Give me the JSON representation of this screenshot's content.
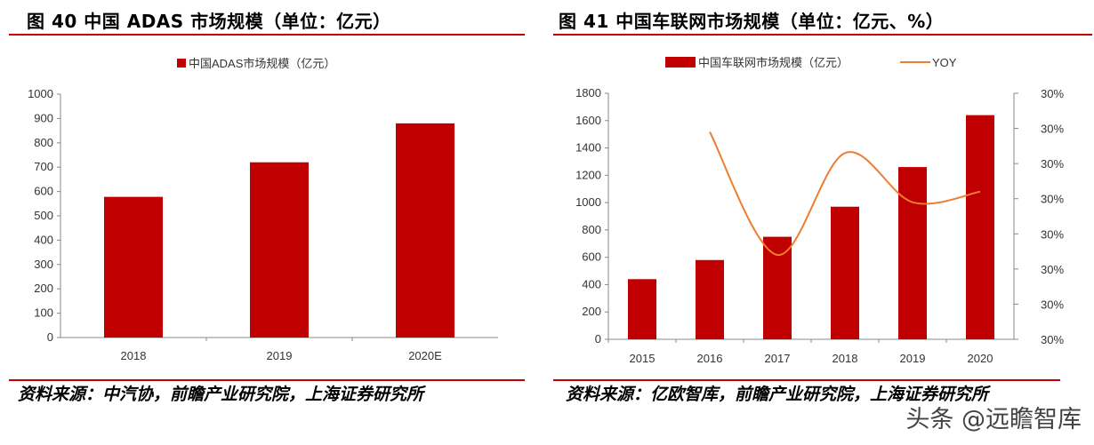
{
  "left": {
    "title": "图 40 中国 ADAS 市场规模（单位：亿元）",
    "source": "资料来源：中汽协，前瞻产业研究院，上海证券研究所"
  },
  "right": {
    "title": "图 41 中国车联网市场规模（单位：亿元、%）",
    "source": "资料来源：亿欧智库，前瞻产业研究院，上海证券研究所"
  },
  "watermark": "头条 @远瞻智库",
  "colors": {
    "bar": "#c00000",
    "line": "#ed7d31",
    "rule": "#c00000"
  },
  "chart_data": [
    {
      "type": "bar",
      "title": "",
      "legend": [
        "中国ADAS市场规模（亿元）"
      ],
      "legend_position": "top",
      "categories": [
        "2018",
        "2019",
        "2020E"
      ],
      "series": [
        {
          "name": "中国ADAS市场规模（亿元）",
          "values": [
            578,
            720,
            880
          ]
        }
      ],
      "ylim": [
        0,
        1000
      ],
      "yticks": [
        0,
        100,
        200,
        300,
        400,
        500,
        600,
        700,
        800,
        900,
        1000
      ],
      "grid": false
    },
    {
      "type": "bar",
      "title": "",
      "legend": [
        "中国车联网市场规模（亿元）",
        "YOY"
      ],
      "legend_position": "top",
      "categories": [
        "2015",
        "2016",
        "2017",
        "2018",
        "2019",
        "2020"
      ],
      "series": [
        {
          "name": "中国车联网市场规模（亿元）",
          "type": "bar",
          "axis": "left",
          "values": [
            440,
            580,
            750,
            970,
            1260,
            1640
          ]
        },
        {
          "name": "YOY",
          "type": "line",
          "axis": "right",
          "values": [
            null,
            30.24,
            29.89,
            30.18,
            30.04,
            30.07
          ]
        }
      ],
      "ylim": [
        0,
        1800
      ],
      "yticks": [
        0,
        200,
        400,
        600,
        800,
        1000,
        1200,
        1400,
        1600,
        1800
      ],
      "y2lim": [
        29.65,
        30.35
      ],
      "y2ticks": [
        29.65,
        29.75,
        29.85,
        29.95,
        30.05,
        30.15,
        30.25,
        30.35
      ],
      "y2ticklabels": [
        "30%",
        "30%",
        "30%",
        "30%",
        "30%",
        "30%",
        "30%",
        "30%"
      ],
      "grid": false
    }
  ]
}
